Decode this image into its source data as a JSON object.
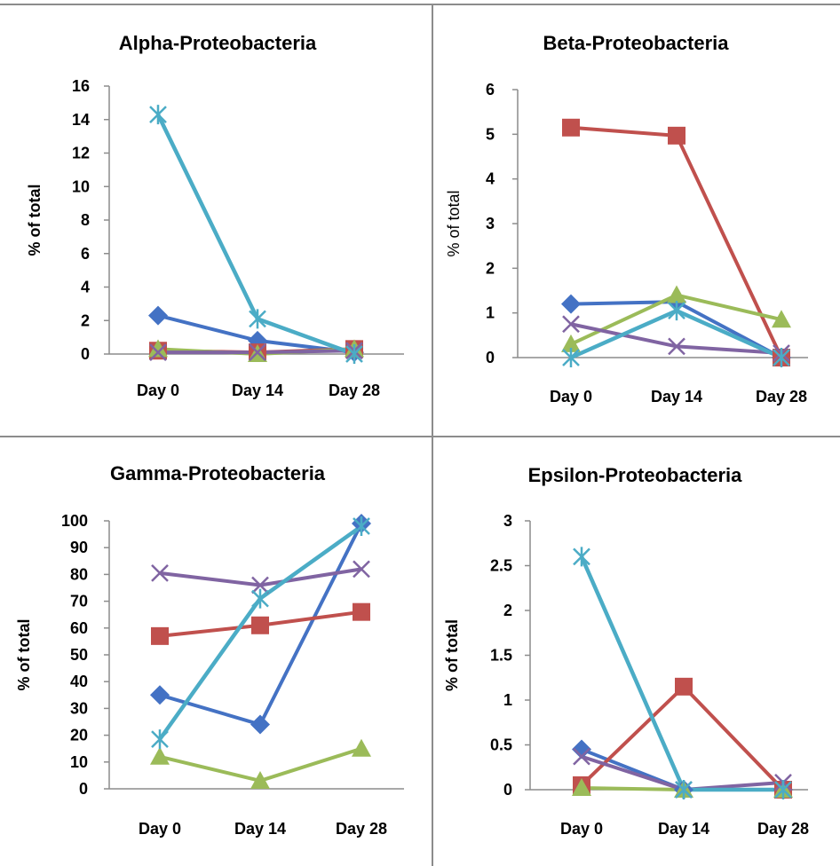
{
  "figure": {
    "colors": {
      "series1": "#4472c4",
      "series2": "#c0504d",
      "series3": "#9bbb59",
      "series4": "#8064a2",
      "series5": "#4bacc6",
      "axis": "#8c8c8c"
    },
    "markers": [
      "diamond",
      "square",
      "triangle",
      "x",
      "asterisk"
    ]
  },
  "chart_data": [
    {
      "type": "line",
      "title": "Alpha-Proteobacteria",
      "ylabel": "% of total",
      "xlabel": "",
      "categories": [
        "Day 0",
        "Day 14",
        "Day 28"
      ],
      "ylim": [
        0,
        16
      ],
      "yticks": [
        "0",
        "2",
        "4",
        "6",
        "8",
        "10",
        "12",
        "14",
        "16"
      ],
      "series": [
        {
          "values": [
            2.3,
            0.8,
            0.1
          ]
        },
        {
          "values": [
            0.2,
            0.1,
            0.3
          ]
        },
        {
          "values": [
            0.3,
            0.0,
            0.3
          ]
        },
        {
          "values": [
            0.1,
            0.1,
            0.2
          ]
        },
        {
          "values": [
            14.3,
            2.1,
            0.0
          ]
        }
      ]
    },
    {
      "type": "line",
      "title": "Beta-Proteobacteria",
      "ylabel": "% of total",
      "xlabel": "",
      "categories": [
        "Day 0",
        "Day 14",
        "Day 28"
      ],
      "ylim": [
        0,
        6
      ],
      "yticks": [
        "0",
        "1",
        "2",
        "3",
        "4",
        "5",
        "6"
      ],
      "series": [
        {
          "values": [
            1.2,
            1.25,
            0.0
          ]
        },
        {
          "values": [
            5.15,
            4.97,
            0.0
          ]
        },
        {
          "values": [
            0.3,
            1.4,
            0.85
          ]
        },
        {
          "values": [
            0.75,
            0.25,
            0.1
          ]
        },
        {
          "values": [
            0.0,
            1.05,
            0.0
          ]
        }
      ]
    },
    {
      "type": "line",
      "title": "Gamma-Proteobacteria",
      "ylabel": "% of total",
      "xlabel": "",
      "categories": [
        "Day 0",
        "Day 14",
        "Day 28"
      ],
      "ylim": [
        0,
        100
      ],
      "yticks": [
        "0",
        "10",
        "20",
        "30",
        "40",
        "50",
        "60",
        "70",
        "80",
        "90",
        "100"
      ],
      "series": [
        {
          "values": [
            35,
            24,
            99
          ]
        },
        {
          "values": [
            57,
            61,
            66
          ]
        },
        {
          "values": [
            12,
            3,
            15
          ]
        },
        {
          "values": [
            80.5,
            76,
            82
          ]
        },
        {
          "values": [
            18.5,
            71,
            98
          ]
        }
      ]
    },
    {
      "type": "line",
      "title": "Epsilon-Proteobacteria",
      "ylabel": "% of total",
      "xlabel": "",
      "categories": [
        "Day 0",
        "Day 14",
        "Day 28"
      ],
      "ylim": [
        0,
        3
      ],
      "yticks": [
        "0",
        "0.5",
        "1",
        "1.5",
        "2",
        "2.5",
        "3"
      ],
      "series": [
        {
          "values": [
            0.45,
            0.0,
            0.0
          ]
        },
        {
          "values": [
            0.05,
            1.15,
            0.0
          ]
        },
        {
          "values": [
            0.02,
            0.0,
            0.0
          ]
        },
        {
          "values": [
            0.37,
            0.0,
            0.08
          ]
        },
        {
          "values": [
            2.6,
            0.0,
            0.0
          ]
        }
      ]
    }
  ]
}
